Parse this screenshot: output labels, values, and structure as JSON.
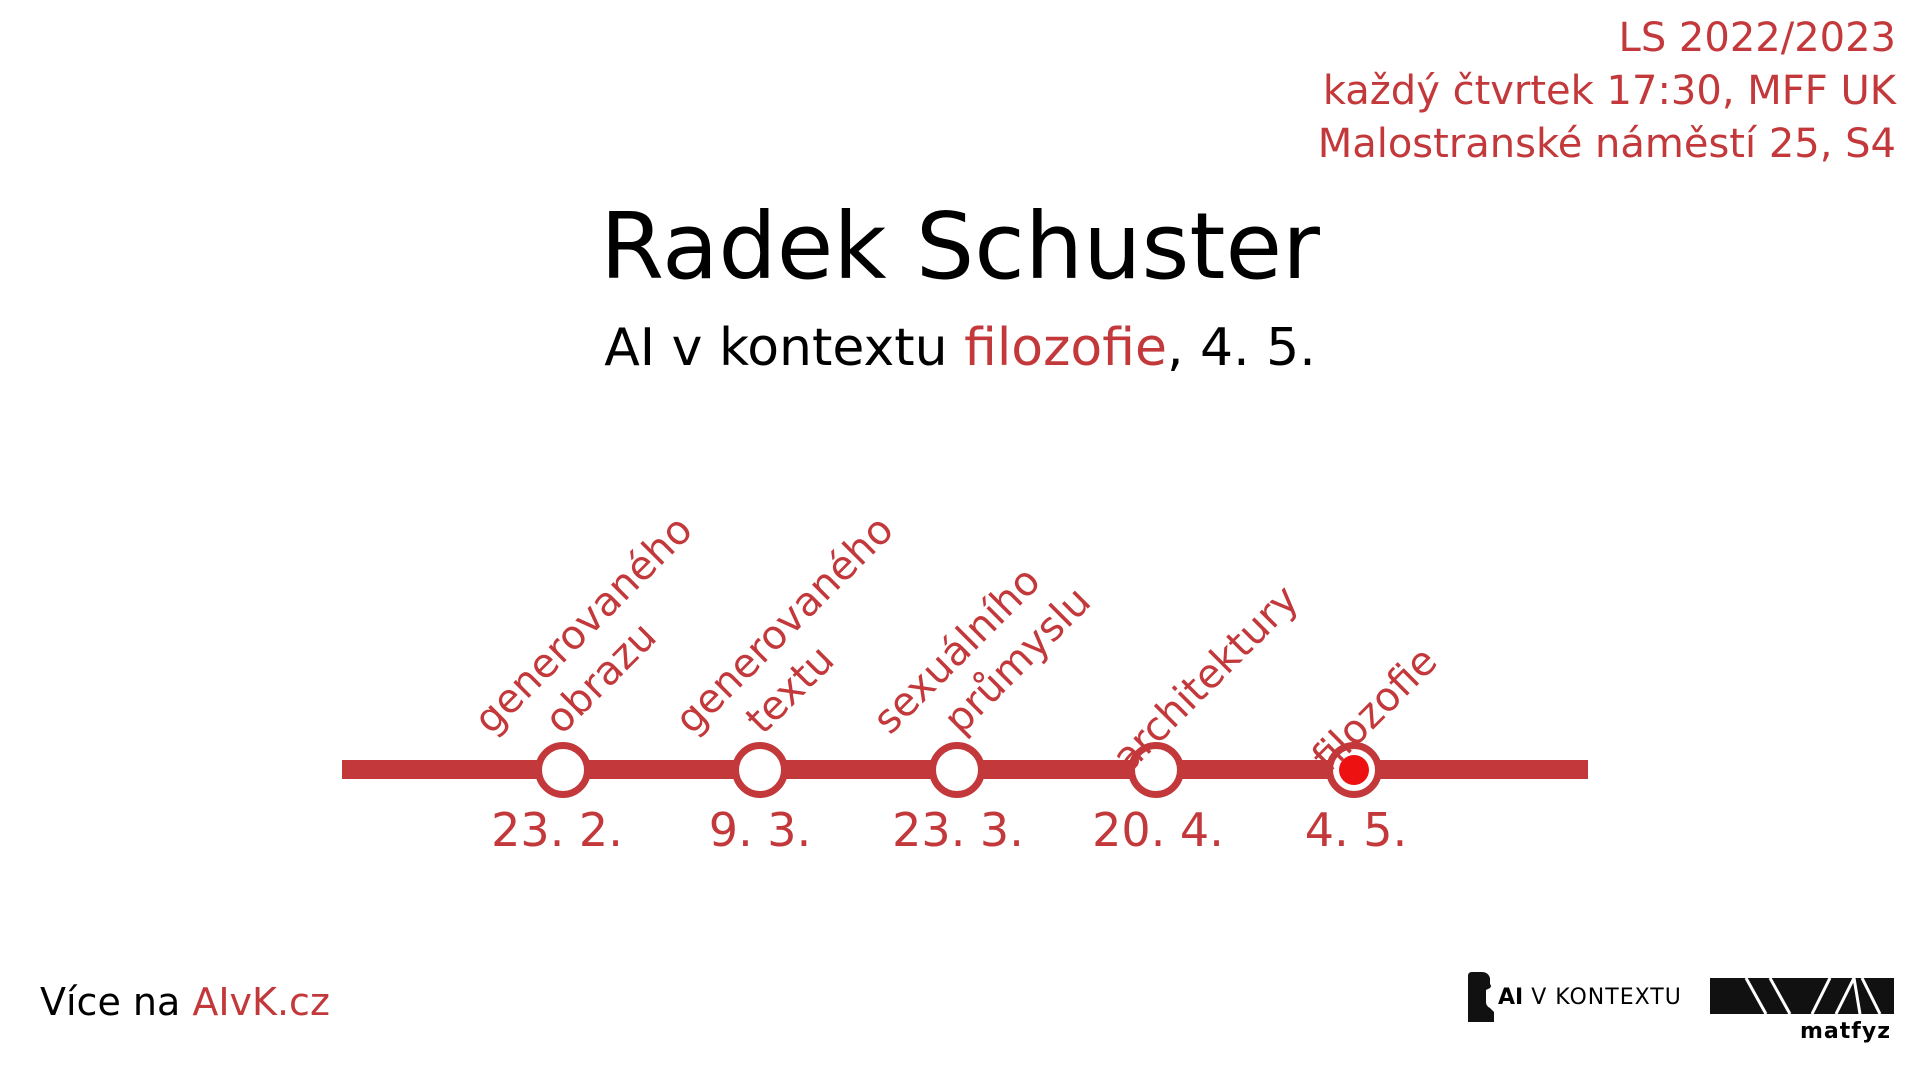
{
  "info": {
    "line1": "LS 2022/2023",
    "line2": "každý čtvrtek 17:30, MFF UK",
    "line3": "Malostranské náměstí 25, S4"
  },
  "title": "Radek Schuster",
  "subtitle": {
    "prefix": "AI v kontextu ",
    "highlight": "filozofie",
    "suffix": ", 4. 5."
  },
  "timeline": {
    "stops": [
      {
        "date": "23. 2.",
        "topic_line1": "generovaného",
        "topic_line2": "obrazu",
        "current": false
      },
      {
        "date": "9. 3.",
        "topic_line1": "generovaného",
        "topic_line2": "textu",
        "current": false
      },
      {
        "date": "23. 3.",
        "topic_line1": "sexuálního",
        "topic_line2": "průmyslu",
        "current": false
      },
      {
        "date": "20. 4.",
        "topic_line1": "architektury",
        "topic_line2": "",
        "current": false
      },
      {
        "date": "4. 5.",
        "topic_line1": "filozofie",
        "topic_line2": "",
        "current": true
      }
    ]
  },
  "footer": {
    "more_prefix": "Více na ",
    "more_link": "AIvK.cz",
    "logo_ai": "AI",
    "logo_rest": "V KONTEXTU",
    "logo_matfyz": "matfyz"
  },
  "colors": {
    "accent": "#c3393b",
    "current_dot": "#ee1111"
  }
}
